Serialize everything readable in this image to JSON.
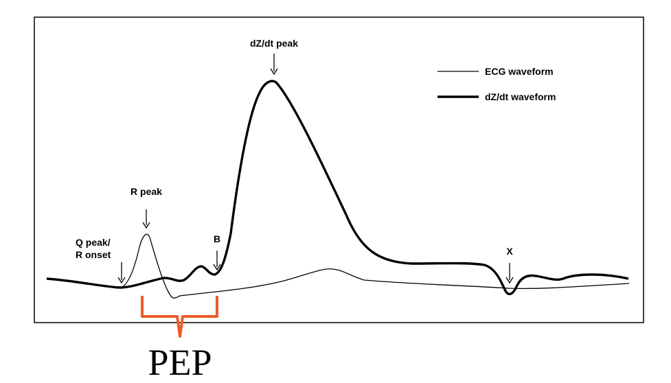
{
  "annotations": {
    "dzdt_peak": "dZ/dt peak",
    "r_peak": "R peak",
    "q_peak_line1": "Q peak/",
    "q_peak_line2": "R onset",
    "b_point": "B",
    "x_point": "X"
  },
  "legend": {
    "items": [
      {
        "label": "ECG waveform",
        "style": "thin"
      },
      {
        "label": "dZ/dt waveform",
        "style": "thick"
      }
    ]
  },
  "interval": {
    "label": "PEP",
    "color": "#f05a28"
  },
  "colors": {
    "frame": "#000000",
    "waveform": "#000000",
    "bracket": "#f05a28"
  }
}
